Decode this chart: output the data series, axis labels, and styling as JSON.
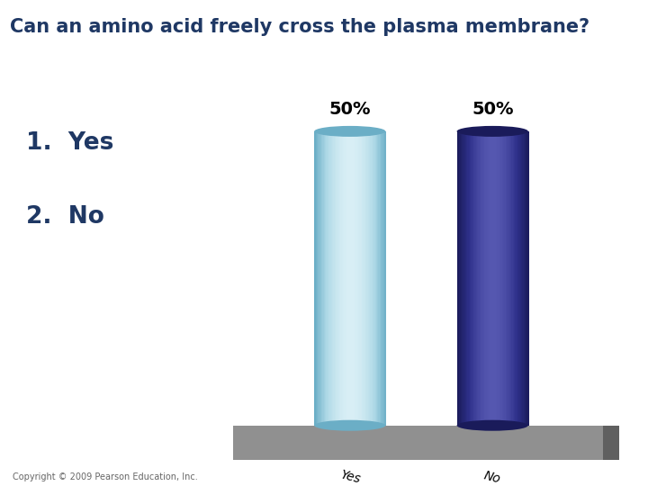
{
  "title": "Can an amino acid freely cross the plasma membrane?",
  "title_color": "#1F3864",
  "title_bg_color": "#C5D9E8",
  "options_text_1": "1.  Yes",
  "options_text_2": "2.  No",
  "options_color": "#1F3864",
  "categories": [
    "Yes",
    "No"
  ],
  "values": [
    50,
    50
  ],
  "labels": [
    "50%",
    "50%"
  ],
  "bar_color_yes": "#ADD8E6",
  "bar_color_yes_dark": "#6BAEC6",
  "bar_color_yes_light": "#D8EEF5",
  "bar_color_no": "#2E308A",
  "bar_color_no_dark": "#1A1B5A",
  "bar_color_no_light": "#5557B0",
  "floor_color": "#909090",
  "floor_dark_color": "#707070",
  "background_color": "#FFFFFF",
  "copyright_text": "Copyright © 2009 Pearson Education, Inc.",
  "copyright_color": "#666666",
  "label_fontsize": 14,
  "title_fontsize": 15,
  "options_fontsize": 19,
  "category_fontsize": 10
}
